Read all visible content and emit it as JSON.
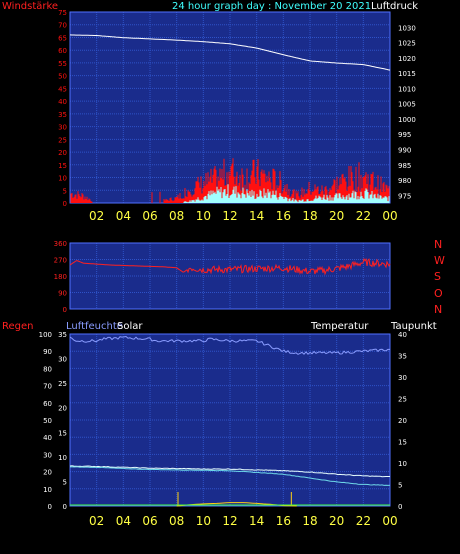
{
  "header": {
    "left": "Windstärke",
    "center": "24 hour graph day : November 20 2021",
    "right": "Luftdruck"
  },
  "middle": {
    "compass_labels": [
      "N",
      "W",
      "S",
      "O",
      "N"
    ]
  },
  "bottom_header": {
    "regen": "Regen",
    "luftfeuchte": "Luftfeuchte",
    "solar": "Solar",
    "temperatur": "Temperatur",
    "taupunkt": "Taupunkt"
  },
  "colors": {
    "panel": "#1a2c8c",
    "grid": "#2e52c8",
    "wind_red": "#ff1010",
    "gust_cyan": "#a0ffff",
    "pressure": "#ffffff",
    "direction_red": "#ff2020",
    "humidity": "#8a9cff",
    "temp": "#e8ffff",
    "dewpoint": "#6ed8e8",
    "solar": "#ffd010",
    "hour_labels": "#ffff44"
  },
  "chart_data": [
    {
      "type": "line",
      "title": "24 hour graph day : November 20 2021",
      "x_ticks": [
        "02",
        "04",
        "06",
        "08",
        "10",
        "12",
        "14",
        "16",
        "18",
        "20",
        "22",
        "00"
      ],
      "y_left_label": "Windstärke",
      "y_left_ticks": [
        0,
        5,
        10,
        15,
        20,
        25,
        30,
        35,
        40,
        45,
        50,
        55,
        60,
        65,
        70,
        75
      ],
      "y_left_range": [
        0,
        75
      ],
      "y_right_label": "Luftdruck",
      "y_right_ticks": [
        975,
        980,
        985,
        990,
        995,
        1000,
        1005,
        1010,
        1015,
        1020,
        1025,
        1030
      ],
      "y_right_range": [
        972.5,
        1035
      ],
      "series": [
        {
          "name": "Luftdruck",
          "x": [
            0,
            2,
            4,
            6,
            8,
            10,
            12,
            14,
            16,
            18,
            20,
            22,
            24
          ],
          "y": [
            1027.5,
            1027.3,
            1026.6,
            1026.2,
            1025.8,
            1025.3,
            1024.6,
            1023.2,
            1021.0,
            1019.0,
            1018.3,
            1017.8,
            1016.0
          ]
        },
        {
          "name": "Windstärke",
          "x": [
            0,
            1,
            2,
            4,
            6,
            8,
            9,
            10,
            11,
            12,
            13,
            14,
            15,
            16,
            17,
            18,
            19,
            20,
            21,
            22,
            23,
            24
          ],
          "y": [
            4,
            3,
            0,
            0,
            0,
            2,
            6,
            8,
            10,
            13,
            11,
            12,
            10,
            8,
            3,
            6,
            5,
            8,
            10,
            11,
            8,
            5
          ]
        },
        {
          "name": "Böen",
          "x": [
            0,
            4,
            8,
            9,
            10,
            11,
            12,
            13,
            14,
            15,
            16,
            17,
            18,
            19,
            20,
            21,
            22,
            23,
            24
          ],
          "y": [
            0,
            0,
            0,
            1,
            3,
            5,
            6,
            5,
            4,
            5,
            3,
            1,
            2,
            3,
            3,
            4,
            5,
            3,
            2
          ]
        }
      ]
    },
    {
      "type": "line",
      "x_ticks": [
        "02",
        "04",
        "06",
        "08",
        "10",
        "12",
        "14",
        "16",
        "18",
        "20",
        "22",
        "00"
      ],
      "y_ticks": [
        0,
        90,
        180,
        270,
        360
      ],
      "y_range": [
        0,
        360
      ],
      "y_right_labels": [
        "N",
        "W",
        "S",
        "O",
        "N"
      ],
      "series": [
        {
          "name": "Windrichtung",
          "x": [
            0,
            0.5,
            1,
            3,
            7,
            8,
            8.5,
            9,
            10,
            12,
            14,
            16,
            17,
            18,
            19,
            20,
            21,
            22,
            23,
            24
          ],
          "y": [
            240,
            265,
            250,
            240,
            230,
            225,
            200,
            225,
            215,
            215,
            220,
            225,
            215,
            205,
            210,
            220,
            235,
            255,
            250,
            245
          ]
        }
      ]
    },
    {
      "type": "line",
      "x_ticks": [
        "02",
        "04",
        "06",
        "08",
        "10",
        "12",
        "14",
        "16",
        "18",
        "20",
        "22",
        "00"
      ],
      "y_left_label": "Luftfeuchte",
      "y_left_ticks": [
        0,
        10,
        20,
        30,
        40,
        50,
        60,
        70,
        80,
        90,
        100
      ],
      "y_left_range": [
        0,
        100
      ],
      "y_mid_ticks": [
        0,
        5,
        10,
        15,
        20,
        25,
        30,
        35
      ],
      "y_mid_range": [
        0,
        35
      ],
      "y_right_label": "Taupunkt",
      "y_right_ticks": [
        0,
        5,
        10,
        15,
        20,
        25,
        30,
        35,
        40
      ],
      "y_right_range": [
        0,
        40
      ],
      "series": [
        {
          "name": "Luftfeuchte",
          "x": [
            0,
            0.5,
            2,
            2.5,
            4,
            6,
            6.5,
            10,
            10.5,
            12,
            14,
            15,
            16,
            17,
            20,
            22,
            24
          ],
          "y": [
            98,
            96,
            96,
            97,
            98,
            97,
            96,
            96,
            97,
            96,
            96,
            93,
            90,
            89,
            89,
            90,
            91
          ]
        },
        {
          "name": "Temperatur",
          "x": [
            0,
            2,
            4,
            6,
            8,
            10,
            12,
            14,
            16,
            18,
            20,
            22,
            24
          ],
          "y": [
            9.3,
            9.2,
            9.0,
            8.8,
            8.7,
            8.6,
            8.6,
            8.4,
            8.2,
            7.9,
            7.4,
            7.0,
            6.8
          ]
        },
        {
          "name": "Taupunkt",
          "x": [
            0,
            2,
            4,
            6,
            8,
            10,
            12,
            14,
            16,
            18,
            20,
            22,
            24
          ],
          "y": [
            9.1,
            9.0,
            8.7,
            8.5,
            8.4,
            8.3,
            8.2,
            7.8,
            7.4,
            6.5,
            5.6,
            5.0,
            4.8
          ]
        },
        {
          "name": "Solar",
          "x": [
            8,
            9,
            10,
            11,
            12,
            13,
            14,
            15,
            16,
            17
          ],
          "y": [
            0,
            0.3,
            0.5,
            0.6,
            0.8,
            0.8,
            0.6,
            0.4,
            0.1,
            0
          ]
        }
      ]
    }
  ]
}
